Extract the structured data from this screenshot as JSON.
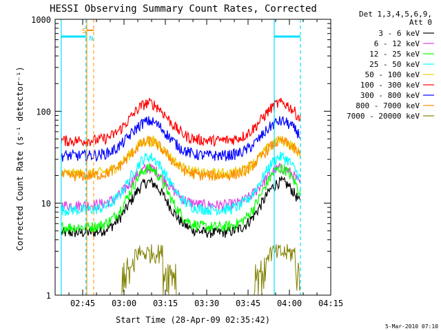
{
  "chart_data": {
    "type": "line",
    "title": "HESSI Observing Summary Count Rates, Corrected",
    "xlabel": "Start Time (28-Apr-09 02:35:42)",
    "ylabel": "Corrected Count Rate (s⁻¹ detector⁻¹)",
    "y_scale": "log",
    "ylim": [
      1,
      1000
    ],
    "xlim_minutes_after_0235": [
      0,
      100
    ],
    "x_ticks": [
      {
        "label": "02:45",
        "minute": 10
      },
      {
        "label": "03:00",
        "minute": 25
      },
      {
        "label": "03:15",
        "minute": 40
      },
      {
        "label": "03:30",
        "minute": 55
      },
      {
        "label": "03:45",
        "minute": 70
      },
      {
        "label": "04:00",
        "minute": 85
      },
      {
        "label": "04:15",
        "minute": 100
      }
    ],
    "y_ticks": [
      {
        "label": "1",
        "value": 1
      },
      {
        "label": "10",
        "value": 10
      },
      {
        "label": "100",
        "value": 100
      },
      {
        "label": "1000",
        "value": 1000
      }
    ],
    "legend_header": [
      "Det 1,3,4,5,6,9,",
      "Att 0"
    ],
    "legend_placement": "right",
    "series": [
      {
        "name": "3 - 6 keV",
        "color": "#000000",
        "base": 4.8,
        "peak": 17,
        "start": 2.2,
        "end": 89
      },
      {
        "name": "6 - 12 keV",
        "color": "#e040e0",
        "base": 9.5,
        "peak": 24,
        "start": 2.2,
        "end": 89
      },
      {
        "name": "12 - 25 keV",
        "color": "#00ff00",
        "base": 5.5,
        "peak": 24,
        "start": 2.2,
        "end": 89
      },
      {
        "name": "25 - 50 keV",
        "color": "#00ffff",
        "base": 8.5,
        "peak": 32,
        "start": 2.2,
        "end": 89
      },
      {
        "name": "50 - 100 keV",
        "color": "#e8d000",
        "base": 21,
        "peak": 48,
        "start": 2.2,
        "end": 89
      },
      {
        "name": "100 - 300 keV",
        "color": "#ff0000",
        "base": 48,
        "peak": 123,
        "start": 2.2,
        "end": 89
      },
      {
        "name": "300 - 800 keV",
        "color": "#0000ff",
        "base": 33,
        "peak": 78,
        "start": 2.2,
        "end": 89
      },
      {
        "name": "800 - 7000 keV",
        "color": "#ff8c00",
        "base": 20,
        "peak": 47,
        "start": 2.2,
        "end": 89
      },
      {
        "name": "7000 - 20000 keV",
        "color": "#808000",
        "base": 1,
        "peak": 3.2,
        "start": 2.2,
        "end": 89
      }
    ],
    "peaks_minute": [
      34,
      82
    ],
    "saa_lines_minute": [
      2.2,
      11.2,
      79.5,
      89
    ],
    "saa_bar_value": 650,
    "saa_bar_ranges": [
      [
        2.2,
        11.2
      ],
      [
        79.5,
        89
      ]
    ],
    "orange_marker_lines_minute": [
      11.5,
      14
    ],
    "annotations": [
      {
        "text": "S",
        "color": "#ff8c00",
        "minute": 10.5,
        "value": 760
      },
      {
        "text": "N",
        "color": "#00e0ff",
        "minute": 13.1,
        "value": 630
      }
    ],
    "footer": "5-Mar-2010 07:10"
  }
}
